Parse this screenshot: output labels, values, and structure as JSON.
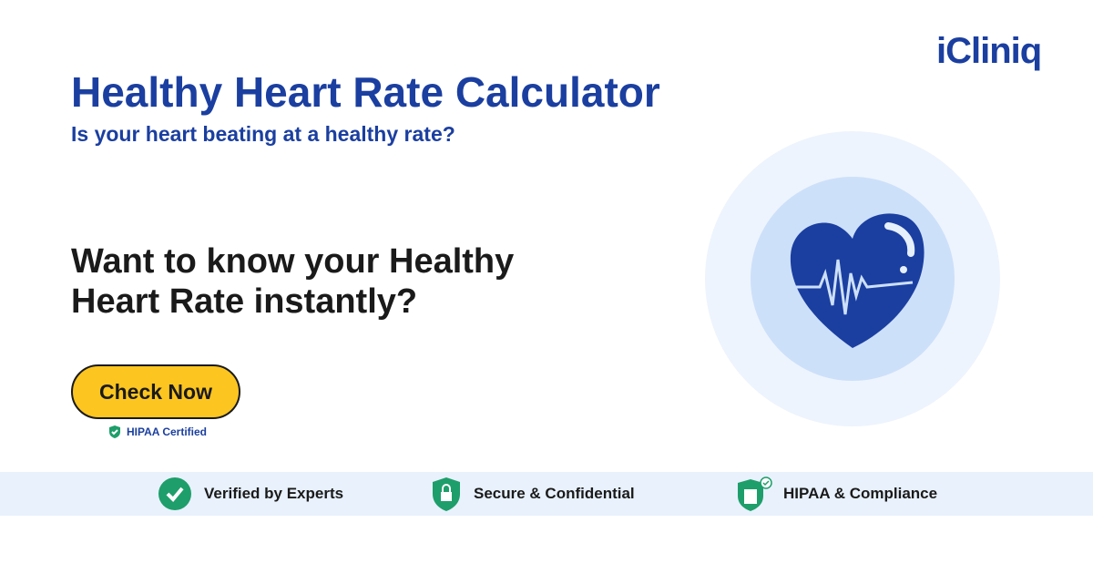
{
  "brand": "iCliniq",
  "header": {
    "title": "Healthy Heart Rate Calculator",
    "subtitle": "Is your heart beating at a healthy rate?"
  },
  "prompt": "Want to know your Healthy Heart Rate instantly?",
  "button": "Check Now",
  "badge": "HIPAA Certified",
  "features": [
    "Verified by Experts",
    "Secure & Confidential",
    "HIPAA & Compliance"
  ]
}
